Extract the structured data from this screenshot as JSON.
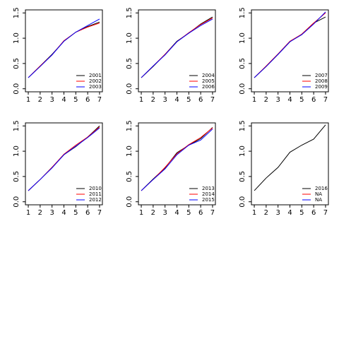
{
  "chart_data": [
    {
      "type": "line",
      "x": [
        1,
        2,
        3,
        4,
        5,
        6,
        7
      ],
      "xlim": [
        0.76,
        7.24
      ],
      "xticks": [
        1,
        2,
        3,
        4,
        5,
        6,
        7
      ],
      "ylim": [
        -0.06,
        1.56
      ],
      "yticks": [
        {
          "value": 0,
          "label": "0.0"
        },
        0.5,
        {
          "value": 1,
          "label": "1.0"
        },
        1.5
      ],
      "legend": "bottom-right",
      "series": [
        {
          "name": "2001",
          "color": "#000000",
          "values": [
            0.22,
            0.45,
            0.68,
            0.94,
            1.12,
            1.23,
            1.32
          ]
        },
        {
          "name": "2002",
          "color": "#ff0000",
          "values": [
            0.22,
            0.45,
            0.67,
            0.95,
            1.12,
            1.22,
            1.3
          ]
        },
        {
          "name": "2003",
          "color": "#0000ff",
          "values": [
            0.22,
            0.44,
            0.67,
            0.94,
            1.12,
            1.25,
            1.38
          ]
        }
      ]
    },
    {
      "type": "line",
      "x": [
        1,
        2,
        3,
        4,
        5,
        6,
        7
      ],
      "xlim": [
        0.76,
        7.24
      ],
      "xticks": [
        1,
        2,
        3,
        4,
        5,
        6,
        7
      ],
      "ylim": [
        -0.06,
        1.56
      ],
      "yticks": [
        {
          "value": 0,
          "label": "0.0"
        },
        0.5,
        {
          "value": 1,
          "label": "1.0"
        },
        1.5
      ],
      "legend": "bottom-right",
      "series": [
        {
          "name": "2004",
          "color": "#000000",
          "values": [
            0.22,
            0.44,
            0.68,
            0.94,
            1.1,
            1.28,
            1.42
          ]
        },
        {
          "name": "2005",
          "color": "#ff0000",
          "values": [
            0.22,
            0.45,
            0.68,
            0.93,
            1.11,
            1.27,
            1.4
          ]
        },
        {
          "name": "2006",
          "color": "#0000ff",
          "values": [
            0.22,
            0.45,
            0.67,
            0.93,
            1.1,
            1.25,
            1.38
          ]
        }
      ]
    },
    {
      "type": "line",
      "x": [
        1,
        2,
        3,
        4,
        5,
        6,
        7
      ],
      "xlim": [
        0.76,
        7.24
      ],
      "xticks": [
        1,
        2,
        3,
        4,
        5,
        6,
        7
      ],
      "ylim": [
        -0.06,
        1.56
      ],
      "yticks": [
        {
          "value": 0,
          "label": "0.0"
        },
        0.5,
        {
          "value": 1,
          "label": "1.0"
        },
        1.5
      ],
      "legend": "bottom-right",
      "series": [
        {
          "name": "2007",
          "color": "#000000",
          "values": [
            0.22,
            0.44,
            0.68,
            0.93,
            1.08,
            1.3,
            1.42
          ]
        },
        {
          "name": "2008",
          "color": "#ff0000",
          "values": [
            0.22,
            0.45,
            0.69,
            0.94,
            1.08,
            1.3,
            1.5
          ]
        },
        {
          "name": "2009",
          "color": "#0000ff",
          "values": [
            0.22,
            0.44,
            0.68,
            0.93,
            1.07,
            1.28,
            1.52
          ]
        }
      ]
    },
    {
      "type": "line",
      "x": [
        1,
        2,
        3,
        4,
        5,
        6,
        7
      ],
      "xlim": [
        0.76,
        7.24
      ],
      "xticks": [
        1,
        2,
        3,
        4,
        5,
        6,
        7
      ],
      "ylim": [
        -0.06,
        1.56
      ],
      "yticks": [
        {
          "value": 0,
          "label": "0.0"
        },
        0.5,
        {
          "value": 1,
          "label": "1.0"
        },
        1.5
      ],
      "legend": "bottom-right",
      "series": [
        {
          "name": "2010",
          "color": "#000000",
          "values": [
            0.22,
            0.44,
            0.68,
            0.93,
            1.09,
            1.28,
            1.5
          ]
        },
        {
          "name": "2011",
          "color": "#ff0000",
          "values": [
            0.22,
            0.44,
            0.68,
            0.94,
            1.12,
            1.28,
            1.48
          ]
        },
        {
          "name": "2012",
          "color": "#0000ff",
          "values": [
            0.22,
            0.44,
            0.67,
            0.93,
            1.1,
            1.27,
            1.46
          ]
        }
      ]
    },
    {
      "type": "line",
      "x": [
        1,
        2,
        3,
        4,
        5,
        6,
        7
      ],
      "xlim": [
        0.76,
        7.24
      ],
      "xticks": [
        1,
        2,
        3,
        4,
        5,
        6,
        7
      ],
      "ylim": [
        -0.06,
        1.56
      ],
      "yticks": [
        {
          "value": 0,
          "label": "0.0"
        },
        0.5,
        {
          "value": 1,
          "label": "1.0"
        },
        1.5
      ],
      "legend": "bottom-right",
      "series": [
        {
          "name": "2013",
          "color": "#000000",
          "values": [
            0.22,
            0.45,
            0.67,
            0.97,
            1.12,
            1.25,
            1.47
          ]
        },
        {
          "name": "2014",
          "color": "#ff0000",
          "values": [
            0.22,
            0.44,
            0.68,
            0.95,
            1.13,
            1.27,
            1.46
          ]
        },
        {
          "name": "2015",
          "color": "#0000ff",
          "values": [
            0.22,
            0.44,
            0.65,
            0.93,
            1.12,
            1.22,
            1.44
          ]
        }
      ]
    },
    {
      "type": "line",
      "x": [
        1,
        2,
        3,
        4,
        5,
        6,
        7
      ],
      "xlim": [
        0.76,
        7.24
      ],
      "xticks": [
        1,
        2,
        3,
        4,
        5,
        6,
        7
      ],
      "ylim": [
        -0.06,
        1.56
      ],
      "yticks": [
        {
          "value": 0,
          "label": "0.0"
        },
        0.5,
        {
          "value": 1,
          "label": "1.0"
        },
        1.5
      ],
      "legend": "bottom-right",
      "series": [
        {
          "name": "2016",
          "color": "#000000",
          "values": [
            0.22,
            0.47,
            0.68,
            0.98,
            1.12,
            1.24,
            1.52
          ]
        },
        {
          "name": "NA",
          "color": "#ff0000",
          "values": [
            null,
            null,
            null,
            null,
            null,
            null,
            null
          ]
        },
        {
          "name": "NA",
          "color": "#0000ff",
          "values": [
            null,
            null,
            null,
            null,
            null,
            null,
            null
          ]
        }
      ]
    }
  ]
}
